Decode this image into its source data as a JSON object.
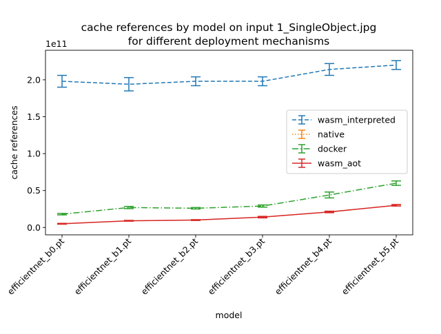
{
  "chart_data": {
    "type": "line",
    "title": "cache references by model on input 1_SingleObject.jpg",
    "subtitle": "for different deployment mechanisms",
    "xlabel": "model",
    "ylabel": "cache references",
    "y_offset_label": "1e11",
    "y_scale": 100000000000.0,
    "categories": [
      "efficientnet_b0.pt",
      "efficientnet_b1.pt",
      "efficientnet_b2.pt",
      "efficientnet_b3.pt",
      "efficientnet_b4.pt",
      "efficientnet_b5.pt"
    ],
    "yticks": [
      0.0,
      0.5,
      1.0,
      1.5,
      2.0
    ],
    "ytick_labels": [
      "0.0",
      "0.5",
      "1.0",
      "1.5",
      "2.0"
    ],
    "ylim": [
      -0.1,
      2.4
    ],
    "grid": false,
    "legend_position": "center-right",
    "series": [
      {
        "name": "wasm_interpreted",
        "color": "#1f77b4",
        "dash": "6,3",
        "values": [
          1.98,
          1.94,
          1.98,
          1.98,
          2.14,
          2.2
        ],
        "errors": [
          0.08,
          0.09,
          0.06,
          0.06,
          0.08,
          0.06
        ]
      },
      {
        "name": "native",
        "color": "#ff7f0e",
        "dash": "1.5,2.5",
        "values": [
          0.05,
          0.09,
          0.1,
          0.14,
          0.21,
          0.3
        ],
        "errors": [
          0.005,
          0.005,
          0.005,
          0.01,
          0.01,
          0.01
        ]
      },
      {
        "name": "docker",
        "color": "#2ca02c",
        "dash": "9,3,1.5,3",
        "values": [
          0.18,
          0.27,
          0.26,
          0.29,
          0.44,
          0.6
        ],
        "errors": [
          0.01,
          0.015,
          0.01,
          0.015,
          0.04,
          0.03
        ]
      },
      {
        "name": "wasm_aot",
        "color": "#d62728",
        "dash": "",
        "values": [
          0.05,
          0.09,
          0.1,
          0.14,
          0.21,
          0.3
        ],
        "errors": [
          0.005,
          0.005,
          0.005,
          0.01,
          0.01,
          0.01
        ]
      }
    ]
  }
}
